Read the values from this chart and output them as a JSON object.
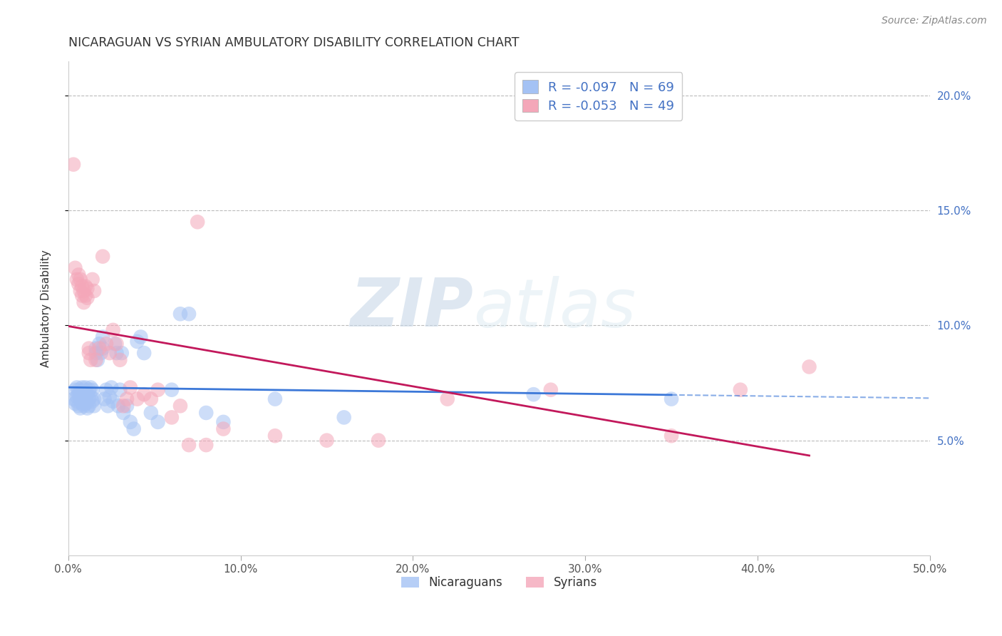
{
  "title": "NICARAGUAN VS SYRIAN AMBULATORY DISABILITY CORRELATION CHART",
  "source": "Source: ZipAtlas.com",
  "ylabel": "Ambulatory Disability",
  "xlabel": "",
  "xlim": [
    0.0,
    0.5
  ],
  "ylim": [
    0.0,
    0.215
  ],
  "xtick_labels": [
    "0.0%",
    "10.0%",
    "20.0%",
    "30.0%",
    "40.0%",
    "50.0%"
  ],
  "xtick_vals": [
    0.0,
    0.1,
    0.2,
    0.3,
    0.4,
    0.5
  ],
  "ytick_vals": [
    0.05,
    0.1,
    0.15,
    0.2
  ],
  "ytick_labels": [
    "5.0%",
    "10.0%",
    "15.0%",
    "20.0%"
  ],
  "nic_color": "#a4c2f4",
  "syr_color": "#f4a7b9",
  "nic_line_color": "#3c78d8",
  "syr_line_color": "#c2185b",
  "nic_R": -0.097,
  "nic_N": 69,
  "syr_R": -0.053,
  "syr_N": 49,
  "watermark_zip": "ZIP",
  "watermark_atlas": "atlas",
  "legend_labels": [
    "Nicaraguans",
    "Syrians"
  ],
  "nic_x": [
    0.003,
    0.004,
    0.004,
    0.005,
    0.005,
    0.005,
    0.006,
    0.006,
    0.006,
    0.007,
    0.007,
    0.007,
    0.008,
    0.008,
    0.008,
    0.008,
    0.009,
    0.009,
    0.009,
    0.01,
    0.01,
    0.01,
    0.011,
    0.011,
    0.012,
    0.012,
    0.012,
    0.013,
    0.013,
    0.014,
    0.014,
    0.015,
    0.015,
    0.016,
    0.016,
    0.017,
    0.018,
    0.019,
    0.02,
    0.02,
    0.021,
    0.022,
    0.023,
    0.024,
    0.025,
    0.026,
    0.027,
    0.028,
    0.029,
    0.03,
    0.031,
    0.032,
    0.034,
    0.036,
    0.038,
    0.04,
    0.042,
    0.044,
    0.048,
    0.052,
    0.06,
    0.065,
    0.07,
    0.08,
    0.09,
    0.12,
    0.16,
    0.27,
    0.35
  ],
  "nic_y": [
    0.068,
    0.072,
    0.066,
    0.069,
    0.073,
    0.067,
    0.07,
    0.065,
    0.072,
    0.068,
    0.071,
    0.064,
    0.069,
    0.073,
    0.066,
    0.07,
    0.068,
    0.072,
    0.065,
    0.069,
    0.073,
    0.066,
    0.07,
    0.064,
    0.068,
    0.072,
    0.065,
    0.069,
    0.073,
    0.067,
    0.072,
    0.068,
    0.065,
    0.09,
    0.088,
    0.085,
    0.092,
    0.088,
    0.09,
    0.095,
    0.068,
    0.072,
    0.065,
    0.069,
    0.073,
    0.067,
    0.092,
    0.088,
    0.065,
    0.072,
    0.088,
    0.062,
    0.065,
    0.058,
    0.055,
    0.093,
    0.095,
    0.088,
    0.062,
    0.058,
    0.072,
    0.105,
    0.105,
    0.062,
    0.058,
    0.068,
    0.06,
    0.07,
    0.068
  ],
  "syr_x": [
    0.003,
    0.004,
    0.005,
    0.006,
    0.006,
    0.007,
    0.007,
    0.008,
    0.008,
    0.009,
    0.009,
    0.01,
    0.01,
    0.011,
    0.011,
    0.012,
    0.012,
    0.013,
    0.014,
    0.015,
    0.016,
    0.018,
    0.02,
    0.022,
    0.024,
    0.026,
    0.028,
    0.03,
    0.032,
    0.034,
    0.036,
    0.04,
    0.044,
    0.048,
    0.052,
    0.06,
    0.065,
    0.07,
    0.075,
    0.08,
    0.09,
    0.12,
    0.15,
    0.18,
    0.22,
    0.28,
    0.35,
    0.39,
    0.43
  ],
  "syr_y": [
    0.17,
    0.125,
    0.12,
    0.118,
    0.122,
    0.115,
    0.12,
    0.113,
    0.117,
    0.11,
    0.115,
    0.113,
    0.117,
    0.112,
    0.116,
    0.09,
    0.088,
    0.085,
    0.12,
    0.115,
    0.085,
    0.09,
    0.13,
    0.092,
    0.088,
    0.098,
    0.092,
    0.085,
    0.065,
    0.068,
    0.073,
    0.068,
    0.07,
    0.068,
    0.072,
    0.06,
    0.065,
    0.048,
    0.145,
    0.048,
    0.055,
    0.052,
    0.05,
    0.05,
    0.068,
    0.072,
    0.052,
    0.072,
    0.082
  ],
  "nic_line_x_solid_end": 0.35,
  "syr_line_x_solid_end": 0.43
}
